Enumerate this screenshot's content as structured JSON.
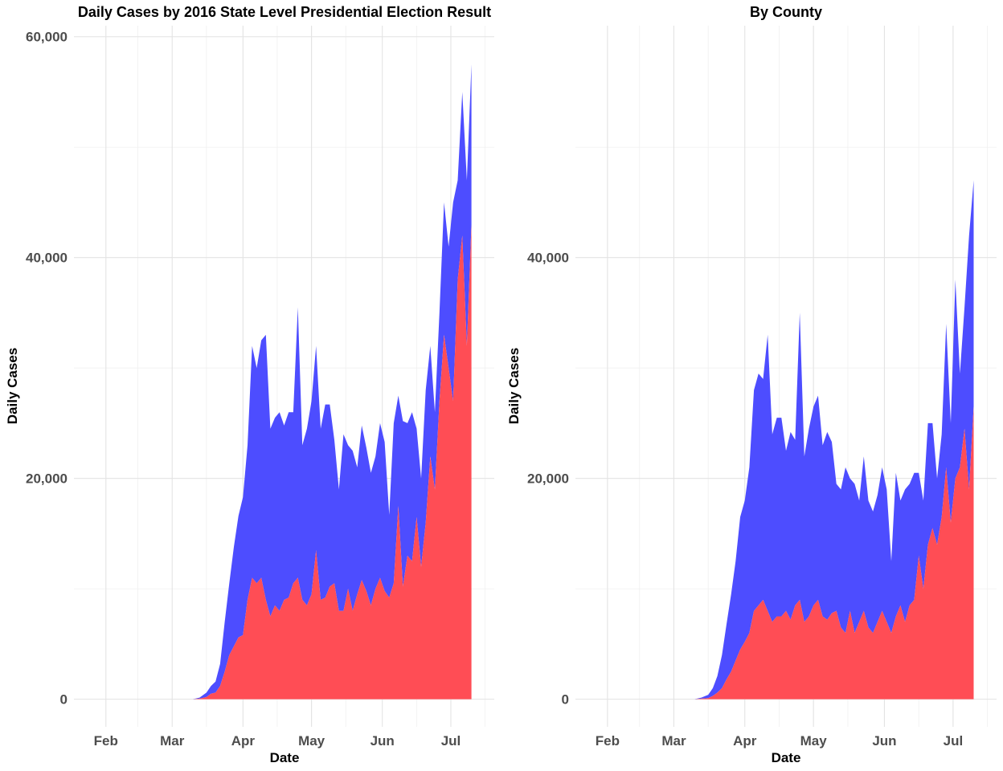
{
  "chart_data": [
    {
      "type": "area",
      "stacked": true,
      "title": "Daily Cases by 2016 State Level Presidential Election Result",
      "xlabel": "Date",
      "ylabel": "Daily Cases",
      "x_tick_labels": [
        "Feb",
        "Mar",
        "Apr",
        "May",
        "Jun",
        "Jul"
      ],
      "y_tick_values": [
        0,
        20000,
        40000,
        60000
      ],
      "y_tick_labels": [
        "0",
        "20,000",
        "40,000",
        "60,000"
      ],
      "ylim": [
        -2500,
        61000
      ],
      "xlim": [
        "2020-01-18",
        "2020-07-20"
      ],
      "grid": true,
      "legend": "none",
      "colors": {
        "top_area": "#4d4dff",
        "bottom_area": "#ff4d55"
      },
      "x": [
        "2020-03-01",
        "2020-03-05",
        "2020-03-10",
        "2020-03-13",
        "2020-03-16",
        "2020-03-18",
        "2020-03-20",
        "2020-03-22",
        "2020-03-24",
        "2020-03-26",
        "2020-03-28",
        "2020-03-30",
        "2020-04-01",
        "2020-04-03",
        "2020-04-05",
        "2020-04-07",
        "2020-04-09",
        "2020-04-11",
        "2020-04-13",
        "2020-04-15",
        "2020-04-17",
        "2020-04-19",
        "2020-04-21",
        "2020-04-23",
        "2020-04-25",
        "2020-04-27",
        "2020-04-29",
        "2020-05-01",
        "2020-05-03",
        "2020-05-05",
        "2020-05-07",
        "2020-05-09",
        "2020-05-11",
        "2020-05-13",
        "2020-05-15",
        "2020-05-17",
        "2020-05-19",
        "2020-05-21",
        "2020-05-23",
        "2020-05-25",
        "2020-05-27",
        "2020-05-29",
        "2020-05-31",
        "2020-06-02",
        "2020-06-04",
        "2020-06-06",
        "2020-06-08",
        "2020-06-10",
        "2020-06-12",
        "2020-06-14",
        "2020-06-16",
        "2020-06-18",
        "2020-06-20",
        "2020-06-22",
        "2020-06-24",
        "2020-06-26",
        "2020-06-28",
        "2020-06-30",
        "2020-07-02",
        "2020-07-04",
        "2020-07-06",
        "2020-07-08",
        "2020-07-10"
      ],
      "series": [
        {
          "values": [
            0,
            0,
            0,
            50,
            200,
            500,
            600,
            1200,
            2500,
            4000,
            4800,
            5600,
            5800,
            9000,
            11000,
            10500,
            11000,
            9000,
            7500,
            8500,
            8000,
            9000,
            9200,
            10500,
            11000,
            9000,
            8500,
            9500,
            13500,
            9000,
            9200,
            10200,
            10500,
            8000,
            8000,
            10000,
            8000,
            9500,
            10800,
            9800,
            8500,
            10000,
            11000,
            9800,
            9200,
            10500,
            17500,
            10200,
            13000,
            12500,
            16500,
            12000,
            16000,
            22000,
            19000,
            27000,
            33000,
            30000,
            27000,
            38000,
            42000,
            32000,
            43000
          ]
        },
        {
          "values": [
            0,
            0,
            0,
            100,
            400,
            700,
            1000,
            2000,
            4500,
            6500,
            9000,
            11000,
            12500,
            14000,
            21000,
            19500,
            21500,
            24000,
            17000,
            17000,
            18000,
            15800,
            16800,
            15500,
            24500,
            14000,
            16000,
            17500,
            18500,
            15500,
            17500,
            16500,
            13000,
            11000,
            16000,
            13000,
            14500,
            11500,
            14000,
            13000,
            12000,
            12000,
            14000,
            13500,
            7500,
            14500,
            10000,
            15000,
            12000,
            13500,
            8000,
            8000,
            12000,
            10000,
            7000,
            8000,
            12000,
            11000,
            18000,
            9000,
            13000,
            15000,
            14500
          ]
        }
      ]
    },
    {
      "type": "area",
      "stacked": true,
      "title": "By County",
      "xlabel": "Date",
      "ylabel": "Daily Cases",
      "x_tick_labels": [
        "Feb",
        "Mar",
        "Apr",
        "May",
        "Jun",
        "Jul"
      ],
      "y_tick_values": [
        0,
        20000,
        40000
      ],
      "y_tick_labels": [
        "0",
        "20,000",
        "40,000"
      ],
      "ylim": [
        -2500,
        61000
      ],
      "xlim": [
        "2020-01-18",
        "2020-07-20"
      ],
      "grid": true,
      "legend": "none",
      "colors": {
        "top_area": "#4d4dff",
        "bottom_area": "#ff4d55"
      },
      "x": [
        "2020-03-01",
        "2020-03-05",
        "2020-03-10",
        "2020-03-13",
        "2020-03-16",
        "2020-03-18",
        "2020-03-20",
        "2020-03-22",
        "2020-03-24",
        "2020-03-26",
        "2020-03-28",
        "2020-03-30",
        "2020-04-01",
        "2020-04-03",
        "2020-04-05",
        "2020-04-07",
        "2020-04-09",
        "2020-04-11",
        "2020-04-13",
        "2020-04-15",
        "2020-04-17",
        "2020-04-19",
        "2020-04-21",
        "2020-04-23",
        "2020-04-25",
        "2020-04-27",
        "2020-04-29",
        "2020-05-01",
        "2020-05-03",
        "2020-05-05",
        "2020-05-07",
        "2020-05-09",
        "2020-05-11",
        "2020-05-13",
        "2020-05-15",
        "2020-05-17",
        "2020-05-19",
        "2020-05-21",
        "2020-05-23",
        "2020-05-25",
        "2020-05-27",
        "2020-05-29",
        "2020-05-31",
        "2020-06-02",
        "2020-06-04",
        "2020-06-06",
        "2020-06-08",
        "2020-06-10",
        "2020-06-12",
        "2020-06-14",
        "2020-06-16",
        "2020-06-18",
        "2020-06-20",
        "2020-06-22",
        "2020-06-24",
        "2020-06-26",
        "2020-06-28",
        "2020-06-30",
        "2020-07-02",
        "2020-07-04",
        "2020-07-06",
        "2020-07-08",
        "2020-07-10"
      ],
      "series": [
        {
          "values": [
            0,
            0,
            0,
            50,
            100,
            300,
            600,
            1000,
            1800,
            2500,
            3500,
            4500,
            5200,
            6000,
            8000,
            8500,
            9000,
            8000,
            7000,
            7500,
            7500,
            8000,
            7200,
            8500,
            9000,
            7000,
            7500,
            8500,
            9000,
            7500,
            7200,
            7800,
            8000,
            6500,
            6000,
            8000,
            6000,
            7000,
            8000,
            6500,
            6000,
            7000,
            8000,
            7000,
            6000,
            7500,
            8500,
            7000,
            8500,
            9000,
            13000,
            10000,
            14000,
            15500,
            14000,
            16500,
            21000,
            16000,
            20000,
            21000,
            24500,
            19000,
            26500
          ]
        },
        {
          "values": [
            0,
            0,
            0,
            100,
            300,
            700,
            1500,
            3000,
            5000,
            7000,
            9000,
            12000,
            12800,
            15000,
            20000,
            21000,
            20000,
            25000,
            17000,
            18000,
            18000,
            14500,
            17000,
            15000,
            26000,
            15000,
            17000,
            18000,
            18500,
            15500,
            17000,
            15500,
            11500,
            12500,
            15000,
            12000,
            13500,
            11000,
            14000,
            11500,
            11000,
            11500,
            13000,
            12000,
            6500,
            13000,
            9500,
            12000,
            11000,
            11500,
            7500,
            8000,
            11000,
            9500,
            6000,
            7500,
            13000,
            9000,
            18000,
            8500,
            11000,
            23000,
            20500
          ]
        }
      ]
    }
  ]
}
